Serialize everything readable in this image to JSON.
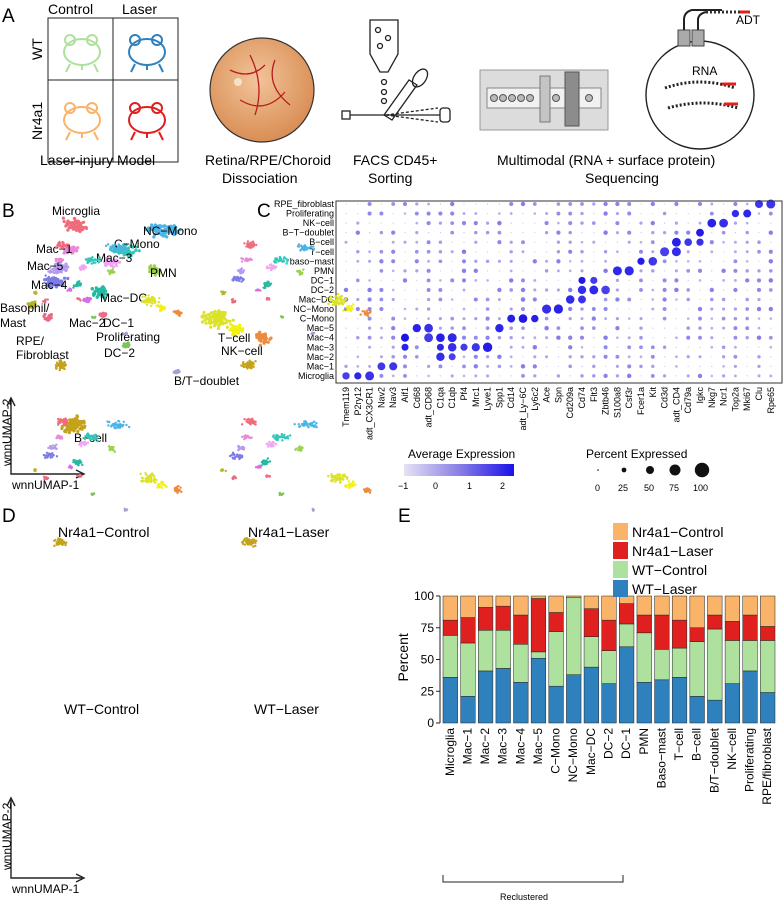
{
  "colors": {
    "nr4a1_control": "#f9b46a",
    "nr4a1_laser": "#e0201f",
    "wt_control": "#aee19e",
    "wt_laser": "#2f81be",
    "dot_low": "#d8d3ee",
    "dot_high": "#1a12e8"
  },
  "panel_a": {
    "label": "A",
    "col_control": "Control",
    "col_laser": "Laser",
    "row_wt": "WT",
    "row_nr4a1": "Nr4a1",
    "step1": "Laser-injury Model",
    "step2_line1": "Retina/RPE/Choroid",
    "step2_line2": "Dissociation",
    "step3_line1": "FACS CD45+",
    "step3_line2": "Sorting",
    "step4_line1": "Multimodal (RNA + surface protein)",
    "step4_line2": "Sequencing",
    "adt_label": "ADT",
    "rna_label": "RNA"
  },
  "panel_b": {
    "label": "B",
    "axis_x": "wnnUMAP-1",
    "axis_y": "wnnUMAP-2",
    "clusters": [
      "Microglia",
      "NC−Mono",
      "Mac−1",
      "C−Mono",
      "Mac−3",
      "Mac−5",
      "PMN",
      "Mac−4",
      "Mac−DC",
      "Basophil/",
      "Mast",
      "Mac−2",
      "DC−1",
      "RPE/",
      "Fibroblast",
      "Proliferating",
      "DC−2",
      "T−cell",
      "NK−cell",
      "B/T−doublet",
      "B−cell"
    ]
  },
  "panel_c": {
    "label": "C",
    "rows": [
      "RPE_fibroblast",
      "Proliferating",
      "NK−cell",
      "B−T−doublet",
      "B−cell",
      "T−cell",
      "baso−mast",
      "PMN",
      "DC−1",
      "DC−2",
      "Mac−DC",
      "NC−Mono",
      "C−Mono",
      "Mac−5",
      "Mac−4",
      "Mac−3",
      "Mac−2",
      "Mac−1",
      "Microglia"
    ],
    "genes": [
      "Tmem119",
      "P2ry12",
      "adt_CX3CR1",
      "Nav2",
      "Nav3",
      "Aif1",
      "Cd68",
      "adt_CD68",
      "C1qa",
      "C1qb",
      "Pf4",
      "Mrc1",
      "Lyve1",
      "Spp1",
      "Cd14",
      "adt_Ly−6C",
      "Ly6c2",
      "Ace",
      "Spn",
      "Cd209a",
      "Cd74",
      "Flt3",
      "Zbtb46",
      "S100a8",
      "Csf3r",
      "Fcer1a",
      "Kit",
      "Cd3d",
      "adt_CD4",
      "Cd79a",
      "Igkc",
      "Nkg7",
      "Ncr1",
      "Top2a",
      "Mki67",
      "Clu",
      "Rpe65"
    ],
    "legend_expr_title": "Average Expression",
    "legend_expr_ticks": [
      "−1",
      "0",
      "1",
      "2"
    ],
    "legend_pct_title": "Percent Expressed",
    "legend_pct_ticks": [
      "0",
      "25",
      "50",
      "75",
      "100"
    ]
  },
  "panel_d": {
    "label": "D",
    "titles": [
      "Nr4a1−Control",
      "Nr4a1−Laser",
      "WT−Control",
      "WT−Laser"
    ],
    "axis_x": "wnnUMAP-1",
    "axis_y": "wnnUMAP-2"
  },
  "panel_e": {
    "label": "E",
    "bracket_label": "Reclustered"
  },
  "chart_data": {
    "type": "bar",
    "stacked": true,
    "title": "",
    "xlabel": "",
    "ylabel": "Percent",
    "ylim": [
      0,
      100
    ],
    "yticks": [
      0,
      25,
      50,
      75,
      100
    ],
    "categories": [
      "Microglia",
      "Mac−1",
      "Mac−2",
      "Mac−3",
      "Mac−4",
      "Mac−5",
      "C−Mono",
      "NC−Mono",
      "Mac−DC",
      "DC−2",
      "DC−1",
      "PMN",
      "Baso−mast",
      "T−cell",
      "B−cell",
      "B/T−doublet",
      "NK−cell",
      "Proliferating",
      "RPE/fibroblast"
    ],
    "legend_position": "top-right",
    "series": [
      {
        "name": "WT−Laser",
        "values": [
          36,
          21,
          41,
          43,
          32,
          51,
          29,
          38,
          44,
          31,
          60,
          32,
          34,
          36,
          21,
          18,
          31,
          41,
          24
        ]
      },
      {
        "name": "WT−Control",
        "values": [
          33,
          42,
          32,
          30,
          30,
          5,
          43,
          61,
          24,
          26,
          18,
          39,
          24,
          23,
          43,
          56,
          34,
          24,
          41
        ]
      },
      {
        "name": "Nr4a1−Laser",
        "values": [
          12,
          20,
          18,
          19,
          23,
          42,
          15,
          0,
          22,
          24,
          16,
          14,
          27,
          22,
          11,
          11,
          15,
          20,
          11
        ]
      },
      {
        "name": "Nr4a1−Control",
        "values": [
          19,
          17,
          9,
          8,
          15,
          2,
          13,
          1,
          10,
          19,
          6,
          15,
          15,
          19,
          25,
          15,
          20,
          15,
          24
        ]
      }
    ]
  }
}
